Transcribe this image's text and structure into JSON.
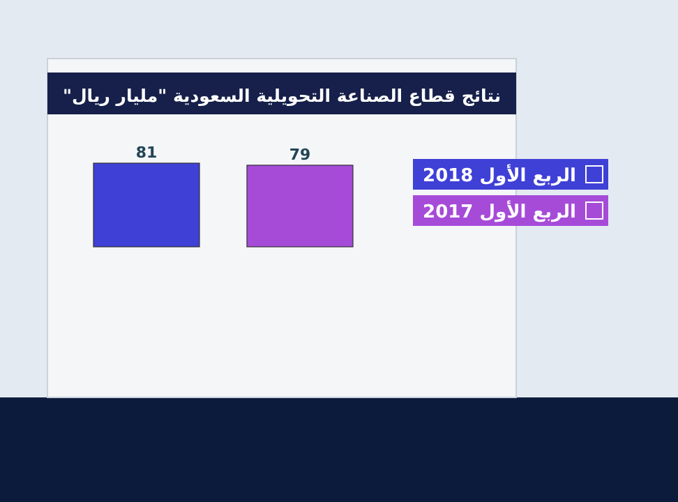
{
  "chart_data": {
    "type": "bar",
    "title": "نتائج قطاع الصناعة التحويلية السعودية \"مليار ريال\"",
    "categories": [
      null,
      null
    ],
    "stacked": true,
    "series": [
      {
        "name": "الربع الأول 2018",
        "color": "#3f40d6",
        "values": [
          81,
          null
        ]
      },
      {
        "name": "الربع الأول 2017",
        "color": "#a64bd8",
        "values": [
          null,
          79
        ]
      }
    ],
    "data_labels": true,
    "legend": "right"
  }
}
